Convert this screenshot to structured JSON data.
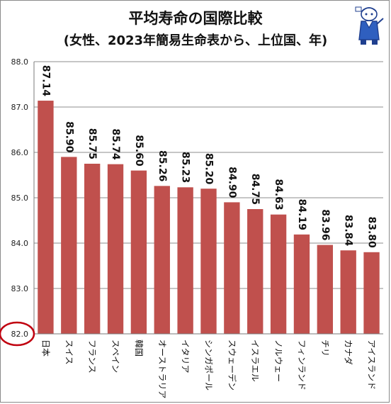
{
  "chart_data": {
    "type": "bar",
    "title": "平均寿命の国際比較",
    "subtitle": "(女性、2023年簡易生命表から、上位国、年)",
    "categories": [
      "日本",
      "スイス",
      "フランス",
      "スペイン",
      "韓国",
      "オーストラリア",
      "イタリア",
      "シンガポール",
      "スウェーデン",
      "イスラエル",
      "ノルウェー",
      "フィンランド",
      "チリ",
      "カナダ",
      "アイスランド"
    ],
    "values": [
      87.14,
      85.9,
      85.75,
      85.74,
      85.6,
      85.26,
      85.23,
      85.2,
      84.9,
      84.75,
      84.63,
      84.19,
      83.96,
      83.84,
      83.8
    ],
    "value_labels": [
      "87.14",
      "85.90",
      "85.75",
      "85.74",
      "85.60",
      "85.26",
      "85.23",
      "85.20",
      "84.90",
      "84.75",
      "84.63",
      "84.19",
      "83.96",
      "83.84",
      "83.80"
    ],
    "ylim": [
      82.0,
      88.0
    ],
    "yticks": [
      "82.0",
      "83.0",
      "84.0",
      "85.0",
      "86.0",
      "87.0",
      "88.0"
    ],
    "ytick_values": [
      82,
      83,
      84,
      85,
      86,
      87,
      88
    ],
    "grid": true,
    "colors": {
      "bar": "#c0504d",
      "grid": "#8c8c8c",
      "highlight_circle": "#c0000f"
    }
  }
}
